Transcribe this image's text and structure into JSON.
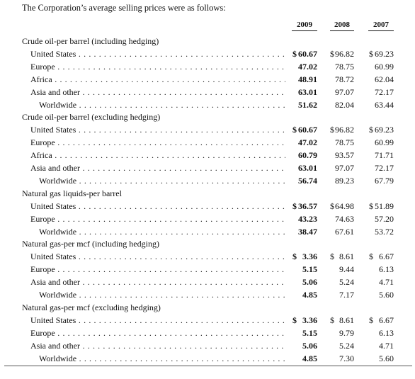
{
  "intro": "The Corporation’s average selling prices were as follows:",
  "years": [
    "2009",
    "2008",
    "2007"
  ],
  "sections": [
    {
      "title": "Crude oil-per barrel (including hedging)",
      "rows": [
        {
          "label": "United States",
          "dollar": true,
          "v": [
            "60.67",
            "96.82",
            "69.23"
          ]
        },
        {
          "label": "Europe",
          "v": [
            "47.02",
            "78.75",
            "60.99"
          ]
        },
        {
          "label": "Africa",
          "v": [
            "48.91",
            "78.72",
            "62.04"
          ]
        },
        {
          "label": "Asia and other",
          "v": [
            "63.01",
            "97.07",
            "72.17"
          ]
        },
        {
          "label": "Worldwide",
          "ww": true,
          "v": [
            "51.62",
            "82.04",
            "63.44"
          ]
        }
      ]
    },
    {
      "title": "Crude oil-per barrel (excluding hedging)",
      "rows": [
        {
          "label": "United States",
          "dollar": true,
          "v": [
            "60.67",
            "96.82",
            "69.23"
          ]
        },
        {
          "label": "Europe",
          "v": [
            "47.02",
            "78.75",
            "60.99"
          ]
        },
        {
          "label": "Africa",
          "v": [
            "60.79",
            "93.57",
            "71.71"
          ]
        },
        {
          "label": "Asia and other",
          "v": [
            "63.01",
            "97.07",
            "72.17"
          ]
        },
        {
          "label": "Worldwide",
          "ww": true,
          "v": [
            "56.74",
            "89.23",
            "67.79"
          ]
        }
      ]
    },
    {
      "title": "Natural gas liquids-per barrel",
      "rows": [
        {
          "label": "United States",
          "dollar": true,
          "v": [
            "36.57",
            "64.98",
            "51.89"
          ]
        },
        {
          "label": "Europe",
          "v": [
            "43.23",
            "74.63",
            "57.20"
          ]
        },
        {
          "label": "Worldwide",
          "ww": true,
          "v": [
            "38.47",
            "67.61",
            "53.72"
          ]
        }
      ]
    },
    {
      "title": "Natural gas-per mcf (including hedging)",
      "rows": [
        {
          "label": "United States",
          "dollar": true,
          "v": [
            "3.36",
            "8.61",
            "6.67"
          ]
        },
        {
          "label": "Europe",
          "v": [
            "5.15",
            "9.44",
            "6.13"
          ]
        },
        {
          "label": "Asia and other",
          "v": [
            "5.06",
            "5.24",
            "4.71"
          ]
        },
        {
          "label": "Worldwide",
          "ww": true,
          "v": [
            "4.85",
            "7.17",
            "5.60"
          ]
        }
      ]
    },
    {
      "title": "Natural gas-per mcf (excluding hedging)",
      "rows": [
        {
          "label": "United States",
          "dollar": true,
          "v": [
            "3.36",
            "8.61",
            "6.67"
          ]
        },
        {
          "label": "Europe",
          "v": [
            "5.15",
            "9.79",
            "6.13"
          ]
        },
        {
          "label": "Asia and other",
          "v": [
            "5.06",
            "5.24",
            "4.71"
          ]
        },
        {
          "label": "Worldwide",
          "ww": true,
          "v": [
            "4.85",
            "7.30",
            "5.60"
          ]
        }
      ]
    }
  ]
}
